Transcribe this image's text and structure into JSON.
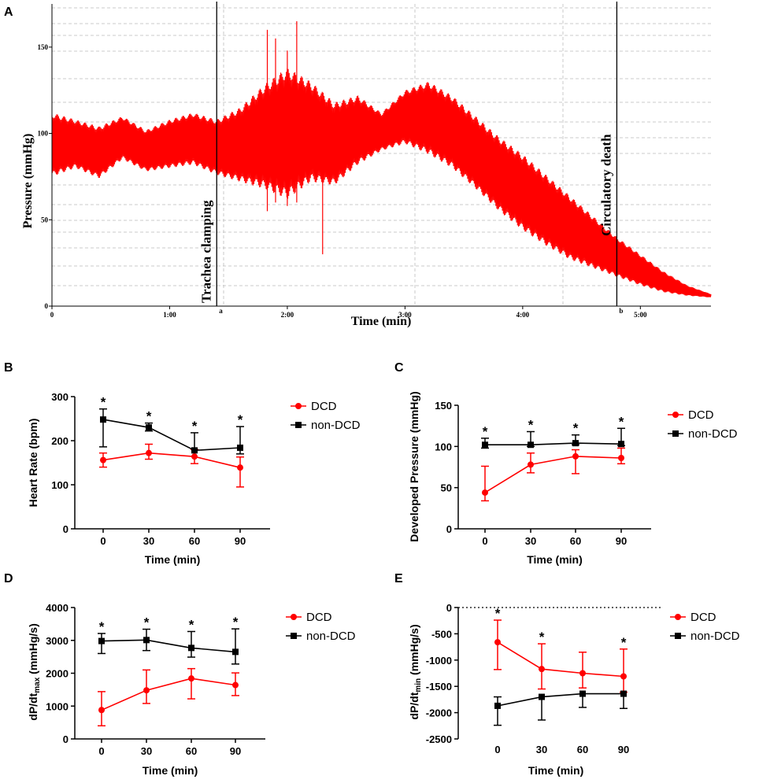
{
  "colors": {
    "dcd": "#ff0000",
    "nondcd": "#000000",
    "trace": "#ff0000",
    "grid": "#bbbbbb"
  },
  "chart_data": [
    {
      "panel": "A",
      "type": "line",
      "title": "",
      "xlabel": "Time (min)",
      "ylabel": "Pressure (mmHg)",
      "x_ticks": [
        "0",
        "1:00",
        "2:00",
        "3:00",
        "4:00",
        "5:00"
      ],
      "y_ticks": [
        "0",
        "50",
        "100",
        "150"
      ],
      "xlim_min": [
        0,
        5.6
      ],
      "ylim": [
        0,
        175
      ],
      "markers": [
        {
          "label": "Trachea clamping",
          "tag": "a",
          "t": 1.4
        },
        {
          "label": "Circulatory death",
          "tag": "b",
          "t": 4.8
        }
      ],
      "envelope": {
        "t": [
          0,
          0.2,
          0.4,
          0.6,
          0.8,
          1.0,
          1.2,
          1.4,
          1.6,
          1.8,
          2.0,
          2.2,
          2.4,
          2.6,
          2.8,
          3.0,
          3.2,
          3.4,
          3.6,
          3.8,
          4.0,
          4.2,
          4.4,
          4.6,
          4.8,
          5.0,
          5.2,
          5.4,
          5.6
        ],
        "upper": [
          112,
          108,
          104,
          110,
          102,
          108,
          112,
          108,
          115,
          128,
          138,
          130,
          118,
          122,
          112,
          125,
          130,
          122,
          110,
          98,
          88,
          76,
          64,
          52,
          40,
          30,
          20,
          12,
          7
        ],
        "lower": [
          75,
          80,
          74,
          85,
          78,
          80,
          82,
          76,
          72,
          68,
          62,
          72,
          70,
          82,
          90,
          94,
          88,
          80,
          68,
          55,
          44,
          35,
          27,
          22,
          17,
          12,
          8,
          6,
          5
        ]
      },
      "spikes": [
        {
          "t": 1.83,
          "low": 55,
          "high": 160
        },
        {
          "t": 1.9,
          "low": 60,
          "high": 155
        },
        {
          "t": 2.08,
          "low": 60,
          "high": 165
        },
        {
          "t": 2.3,
          "low": 30,
          "high": 115
        },
        {
          "t": 2.0,
          "low": 58,
          "high": 148
        }
      ]
    },
    {
      "panel": "B",
      "type": "line",
      "xlabel": "Time (min)",
      "ylabel": "Heart Rate (bpm)",
      "categories": [
        0,
        30,
        60,
        90
      ],
      "ylim": [
        0,
        300
      ],
      "y_ticks": [
        0,
        100,
        200,
        300
      ],
      "series": [
        {
          "name": "DCD",
          "values": [
            156,
            172,
            164,
            139
          ],
          "err_up": [
            16,
            20,
            16,
            24
          ],
          "err_down": [
            16,
            14,
            16,
            44
          ]
        },
        {
          "name": "non-DCD",
          "values": [
            248,
            230,
            178,
            184
          ],
          "err_up": [
            24,
            10,
            40,
            48
          ],
          "err_down": [
            62,
            8,
            0,
            14
          ]
        }
      ],
      "significance": [
        "*",
        "*",
        "*",
        "*"
      ]
    },
    {
      "panel": "C",
      "type": "line",
      "xlabel": "Time (min)",
      "ylabel": "Developed Pressure (mmHg)",
      "categories": [
        0,
        30,
        60,
        90
      ],
      "ylim": [
        0,
        150
      ],
      "y_ticks": [
        0,
        50,
        100,
        150
      ],
      "series": [
        {
          "name": "DCD",
          "values": [
            44,
            78,
            88,
            86
          ],
          "err_up": [
            32,
            14,
            8,
            12
          ],
          "err_down": [
            10,
            10,
            21,
            7
          ]
        },
        {
          "name": "non-DCD",
          "values": [
            102,
            102,
            104,
            103
          ],
          "err_up": [
            8,
            16,
            10,
            19
          ],
          "err_down": [
            4,
            2,
            2,
            2
          ]
        }
      ],
      "significance": [
        "*",
        "*",
        "*",
        "*"
      ]
    },
    {
      "panel": "D",
      "type": "line",
      "xlabel": "Time (min)",
      "ylabel": "dP/dtmax (mmHg/s)",
      "ylabel_main": "dP/dt",
      "ylabel_sub": "max",
      "ylabel_unit": "(mmHg/s)",
      "categories": [
        0,
        30,
        60,
        90
      ],
      "ylim": [
        0,
        4000
      ],
      "y_ticks": [
        0,
        1000,
        2000,
        3000,
        4000
      ],
      "series": [
        {
          "name": "DCD",
          "values": [
            880,
            1480,
            1840,
            1640
          ],
          "err_up": [
            560,
            620,
            300,
            370
          ],
          "err_down": [
            480,
            400,
            620,
            320
          ]
        },
        {
          "name": "non-DCD",
          "values": [
            2980,
            3010,
            2770,
            2650
          ],
          "err_up": [
            230,
            330,
            500,
            700
          ],
          "err_down": [
            380,
            320,
            280,
            370
          ]
        }
      ],
      "significance": [
        "*",
        "*",
        "*",
        "*"
      ]
    },
    {
      "panel": "E",
      "type": "line",
      "xlabel": "Time (min)",
      "ylabel": "dP/dtmin (mmHg/s)",
      "ylabel_main": "dP/dt",
      "ylabel_sub": "min",
      "ylabel_unit": "(mmHg/s)",
      "categories": [
        0,
        30,
        60,
        90
      ],
      "ylim": [
        -2500,
        0
      ],
      "y_ticks": [
        0,
        -500,
        -1000,
        -1500,
        -2000,
        -2500
      ],
      "series": [
        {
          "name": "DCD",
          "values": [
            -660,
            -1170,
            -1250,
            -1310
          ],
          "err_up": [
            420,
            480,
            400,
            520
          ],
          "err_down": [
            520,
            380,
            280,
            300
          ]
        },
        {
          "name": "non-DCD",
          "values": [
            -1870,
            -1700,
            -1640,
            -1640
          ],
          "err_up": [
            170,
            0,
            0,
            0
          ],
          "err_down": [
            370,
            440,
            260,
            280
          ]
        }
      ],
      "significance": [
        "*",
        "*",
        "",
        "*"
      ]
    }
  ]
}
